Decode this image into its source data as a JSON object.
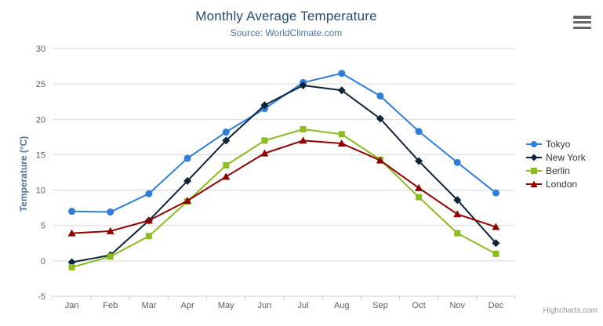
{
  "credits": {
    "label": "Highcharts.com"
  },
  "toolbar": {
    "export_menu_icon": "hamburger-icon"
  },
  "chart_data": {
    "type": "line",
    "title": "Monthly Average Temperature",
    "subtitle": "Source: WorldClimate.com",
    "xlabel": "",
    "ylabel": "Temperature (°C)",
    "categories": [
      "Jan",
      "Feb",
      "Mar",
      "Apr",
      "May",
      "Jun",
      "Jul",
      "Aug",
      "Sep",
      "Oct",
      "Nov",
      "Dec"
    ],
    "ylim": [
      -5,
      30
    ],
    "ytick_step": 5,
    "grid": true,
    "legend_position": "right",
    "colors": {
      "title": "#274b6d",
      "subtitle": "#4d759e",
      "axis_label": "#606060",
      "axis_title": "#4d759e",
      "gridline": "#d8d8d8",
      "axis_line": "#c0d0e0",
      "legend_text": "#333333",
      "credit": "#999999"
    },
    "series": [
      {
        "name": "Tokyo",
        "marker": "circle",
        "color": "#2f7ed8",
        "values": [
          7.0,
          6.9,
          9.5,
          14.5,
          18.2,
          21.5,
          25.2,
          26.5,
          23.3,
          18.3,
          13.9,
          9.6
        ]
      },
      {
        "name": "New York",
        "marker": "diamond",
        "color": "#0d233a",
        "values": [
          -0.2,
          0.8,
          5.7,
          11.3,
          17.0,
          22.0,
          24.8,
          24.1,
          20.1,
          14.1,
          8.6,
          2.5
        ]
      },
      {
        "name": "Berlin",
        "marker": "square",
        "color": "#8bbc21",
        "values": [
          -0.9,
          0.6,
          3.5,
          8.4,
          13.5,
          17.0,
          18.6,
          17.9,
          14.3,
          9.0,
          3.9,
          1.0
        ]
      },
      {
        "name": "London",
        "marker": "triangle",
        "color": "#910000",
        "values": [
          3.9,
          4.2,
          5.7,
          8.5,
          11.9,
          15.2,
          17.0,
          16.6,
          14.2,
          10.3,
          6.6,
          4.8
        ]
      }
    ]
  }
}
